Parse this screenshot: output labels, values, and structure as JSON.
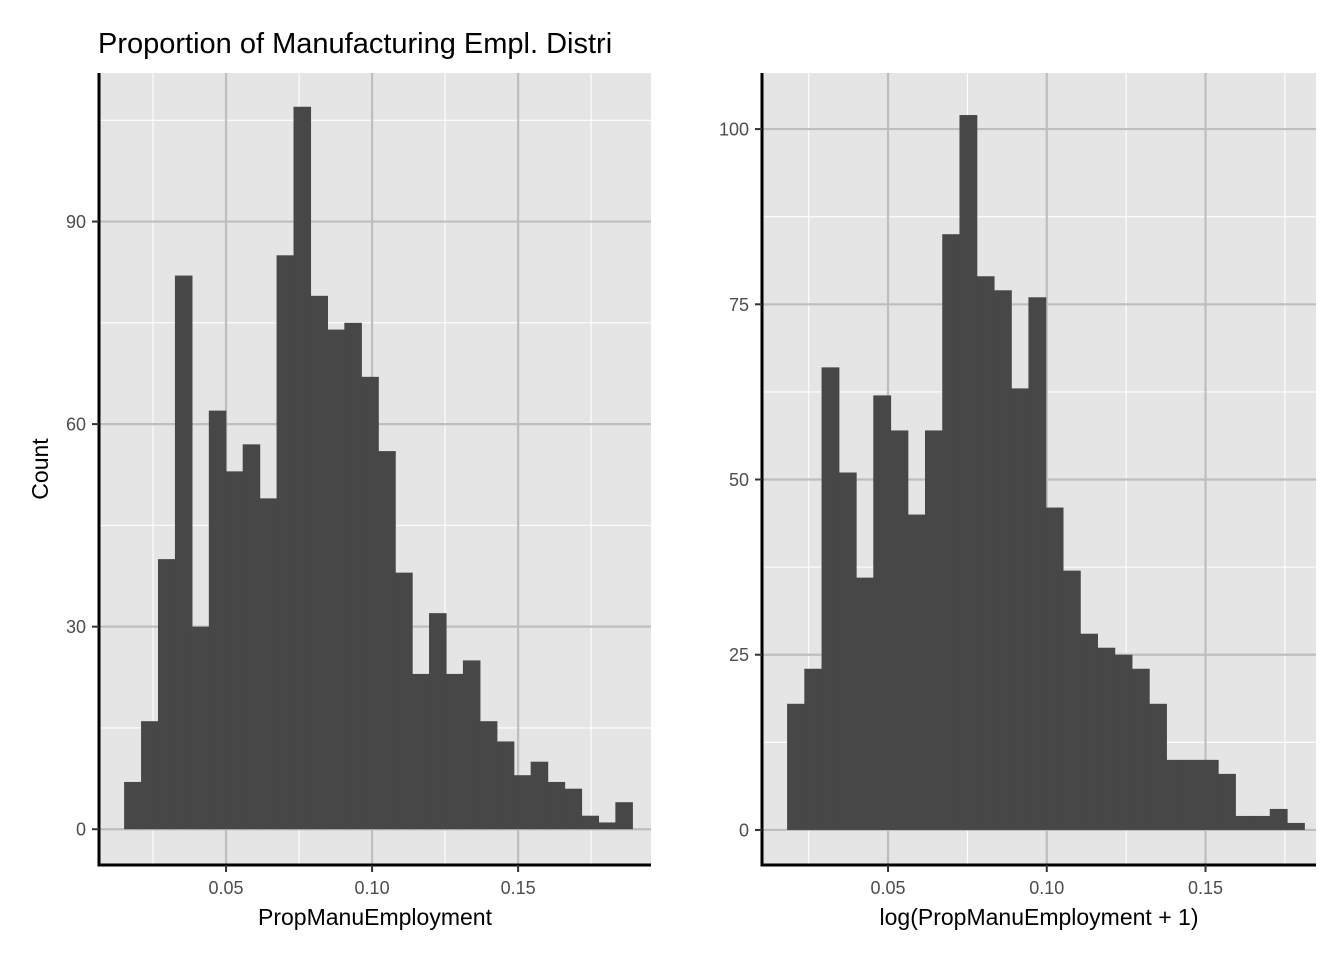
{
  "title": "Proportion of Manufacturing Empl. Distri",
  "colors": {
    "panel_background": "#e5e5e5",
    "grid_major": "#bebebe",
    "grid_minor": "#ffffff",
    "bar_fill": "#474747",
    "axis_line": "#000000",
    "tick_text": "#4d4d4d"
  },
  "chart_data": [
    {
      "type": "bar",
      "subtype": "histogram",
      "xlabel": "PropManuEmployment",
      "ylabel": "Count",
      "xlim": [
        0.0065,
        0.1955
      ],
      "ylim": [
        -5.3,
        112
      ],
      "x_ticks": [
        0.05,
        0.1,
        0.15
      ],
      "x_tick_labels": [
        "0.05",
        "0.10",
        "0.15"
      ],
      "y_ticks": [
        0,
        30,
        60,
        90
      ],
      "y_tick_labels": [
        "0",
        "30",
        "60",
        "90"
      ],
      "bin_width": 0.0058,
      "bin_start": 0.0151,
      "values": [
        7,
        16,
        40,
        82,
        30,
        62,
        53,
        57,
        49,
        85,
        107,
        79,
        74,
        75,
        67,
        56,
        38,
        23,
        32,
        23,
        25,
        16,
        13,
        8,
        10,
        7,
        6,
        2,
        1,
        4
      ],
      "grid": true,
      "legend": "none"
    },
    {
      "type": "bar",
      "subtype": "histogram",
      "xlabel": "log(PropManuEmployment + 1)",
      "ylabel": "",
      "xlim": [
        0.0103,
        0.1848
      ],
      "ylim": [
        -5,
        108
      ],
      "x_ticks": [
        0.05,
        0.1,
        0.15
      ],
      "x_tick_labels": [
        "0.05",
        "0.10",
        "0.15"
      ],
      "y_ticks": [
        0,
        25,
        50,
        75,
        100
      ],
      "y_tick_labels": [
        "0",
        "25",
        "50",
        "75",
        "100"
      ],
      "bin_width": 0.00543,
      "bin_start": 0.0182,
      "values": [
        18,
        23,
        66,
        51,
        36,
        62,
        57,
        45,
        57,
        85,
        102,
        79,
        77,
        63,
        76,
        46,
        37,
        28,
        26,
        25,
        23,
        18,
        10,
        10,
        10,
        8,
        2,
        2,
        3,
        1
      ],
      "grid": true,
      "legend": "none"
    }
  ]
}
